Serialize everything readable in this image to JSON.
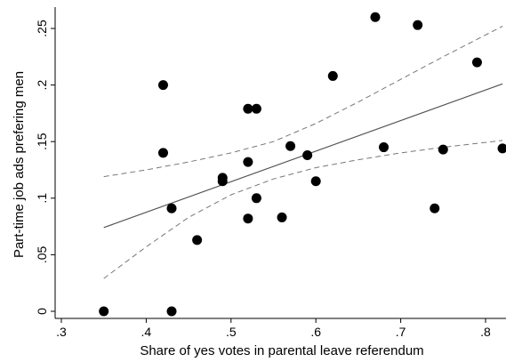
{
  "chart_data": {
    "type": "scatter",
    "xlabel": "Share of yes votes in parental leave referendum",
    "ylabel": "Part-time job ads prefering men",
    "xlim": [
      0.3,
      0.82
    ],
    "ylim": [
      0,
      0.26
    ],
    "x_ticks": [
      0.3,
      0.4,
      0.5,
      0.6,
      0.7,
      0.8
    ],
    "x_tick_labels": [
      ".3",
      ".4",
      ".5",
      ".6",
      ".7",
      ".8"
    ],
    "y_ticks": [
      0,
      0.05,
      0.1,
      0.15,
      0.2,
      0.25
    ],
    "y_tick_labels": [
      "0",
      ".05",
      ".1",
      ".15",
      ".2",
      ".25"
    ],
    "grid": false,
    "points": [
      {
        "x": 0.35,
        "y": 0.0
      },
      {
        "x": 0.42,
        "y": 0.2
      },
      {
        "x": 0.42,
        "y": 0.14
      },
      {
        "x": 0.43,
        "y": 0.091
      },
      {
        "x": 0.43,
        "y": 0.0
      },
      {
        "x": 0.46,
        "y": 0.063
      },
      {
        "x": 0.49,
        "y": 0.118
      },
      {
        "x": 0.49,
        "y": 0.115
      },
      {
        "x": 0.52,
        "y": 0.179
      },
      {
        "x": 0.53,
        "y": 0.179
      },
      {
        "x": 0.52,
        "y": 0.132
      },
      {
        "x": 0.53,
        "y": 0.1
      },
      {
        "x": 0.52,
        "y": 0.082
      },
      {
        "x": 0.56,
        "y": 0.083
      },
      {
        "x": 0.57,
        "y": 0.146
      },
      {
        "x": 0.59,
        "y": 0.138
      },
      {
        "x": 0.6,
        "y": 0.115
      },
      {
        "x": 0.62,
        "y": 0.208
      },
      {
        "x": 0.67,
        "y": 0.26
      },
      {
        "x": 0.68,
        "y": 0.145
      },
      {
        "x": 0.72,
        "y": 0.253
      },
      {
        "x": 0.74,
        "y": 0.091
      },
      {
        "x": 0.75,
        "y": 0.143
      },
      {
        "x": 0.79,
        "y": 0.22
      },
      {
        "x": 0.82,
        "y": 0.144
      }
    ],
    "fit_line": {
      "x": [
        0.35,
        0.82
      ],
      "y": [
        0.074,
        0.201
      ]
    },
    "ci_upper": {
      "x": [
        0.35,
        0.4,
        0.45,
        0.5,
        0.55,
        0.6,
        0.65,
        0.7,
        0.75,
        0.82
      ],
      "y": [
        0.119,
        0.125,
        0.132,
        0.14,
        0.15,
        0.166,
        0.185,
        0.205,
        0.225,
        0.252
      ]
    },
    "ci_lower": {
      "x": [
        0.35,
        0.4,
        0.45,
        0.5,
        0.55,
        0.6,
        0.65,
        0.7,
        0.75,
        0.82
      ],
      "y": [
        0.029,
        0.057,
        0.083,
        0.103,
        0.117,
        0.127,
        0.134,
        0.14,
        0.145,
        0.151
      ]
    },
    "colors": {
      "points": "#000000",
      "fit": "#555555",
      "ci": "#777777",
      "axis": "#000000"
    }
  }
}
